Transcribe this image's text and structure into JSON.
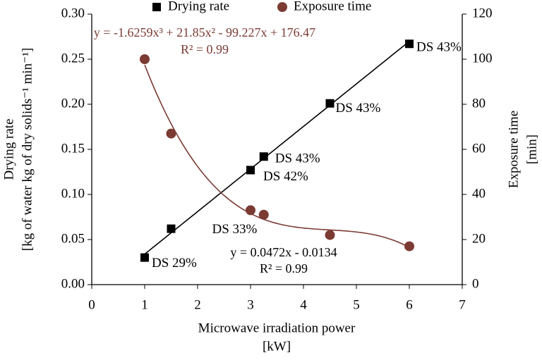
{
  "chart_data": {
    "type": "scatter",
    "x_label": "Microwave irradiation power",
    "x_unit": "[kW]",
    "y_label": "Drying rate",
    "y_unit": "[kg of water kg of dry solids⁻¹ min⁻¹]",
    "y2_label": "Exposure time",
    "y2_unit": "[min]",
    "xlim": [
      0,
      7
    ],
    "xticks": [
      0,
      1,
      2,
      3,
      4,
      5,
      6,
      7
    ],
    "ylim": [
      0,
      0.3
    ],
    "yticks": [
      {
        "value": 0,
        "label": "0.00"
      },
      {
        "value": 0.05,
        "label": "0.05"
      },
      {
        "value": 0.1,
        "label": "0.10"
      },
      {
        "value": 0.15,
        "label": "0.15"
      },
      {
        "value": 0.2,
        "label": "0.20"
      },
      {
        "value": 0.25,
        "label": "0.25"
      },
      {
        "value": 0.3,
        "label": "0.30"
      }
    ],
    "y2lim": [
      0,
      120
    ],
    "y2ticks": [
      0,
      20,
      40,
      60,
      80,
      100,
      120
    ],
    "x": [
      1,
      1.5,
      3,
      3.25,
      4.5,
      6
    ],
    "series": [
      {
        "name": "Drying rate",
        "color": "#000000",
        "marker": "square",
        "values": [
          0.03,
          0.062,
          0.127,
          0.142,
          0.201,
          0.267
        ],
        "point_labels": [
          "DS 29%",
          "DS 33%",
          "DS 42%",
          "DS 43%",
          "DS 43%",
          "DS 43%"
        ],
        "trendline": {
          "equation": "y = 0.0472x - 0.0134",
          "r2": "R² = 0.99",
          "coefficients": [
            0.0472,
            -0.0134
          ]
        }
      },
      {
        "name": "Exposure time",
        "color": "#7b3b33",
        "marker": "circle",
        "axis": "y2",
        "values": [
          100,
          67,
          33,
          31,
          22,
          17
        ],
        "trendline": {
          "equation": "y = -1.6259x³ + 21.85x² - 99.227x + 176.47",
          "r2": "R² = 0.99",
          "coefficients": [
            -1.6259,
            21.85,
            -99.227,
            176.47
          ]
        }
      }
    ]
  }
}
